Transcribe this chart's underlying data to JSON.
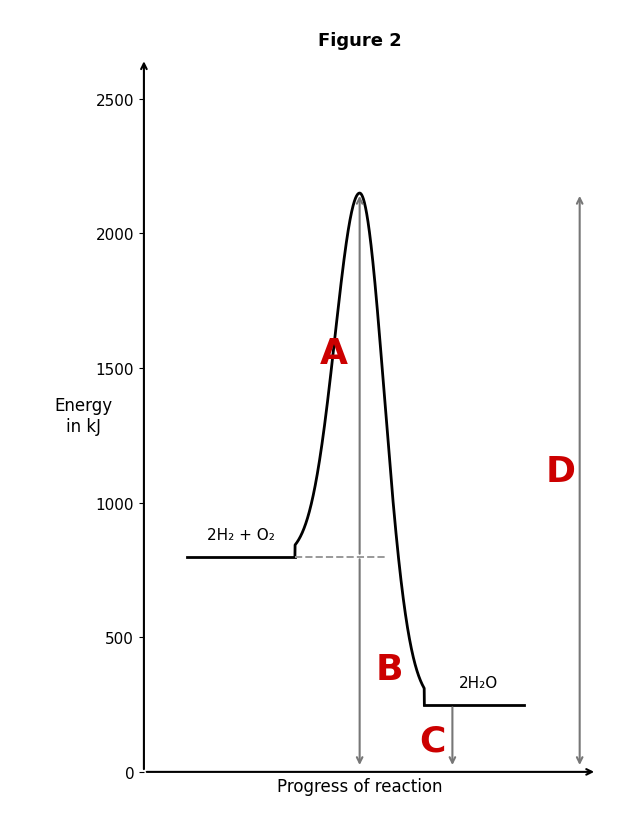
{
  "title": "Figure 2",
  "xlabel": "Progress of reaction",
  "ylabel": "Energy\nin kJ",
  "ylim": [
    0,
    2650
  ],
  "xlim": [
    0,
    10
  ],
  "yticks": [
    0,
    500,
    1000,
    1500,
    2000,
    2500
  ],
  "reactant_level": 800,
  "product_level": 250,
  "peak_level": 2150,
  "reactant_x_start": 1.0,
  "reactant_x_end": 3.5,
  "peak_x": 5.0,
  "product_x_start": 6.5,
  "product_x_end": 8.8,
  "curve_color": "#000000",
  "label_color": "#cc0000",
  "arrow_color": "#777777",
  "dashed_color": "#999999",
  "bg_color": "#ffffff",
  "reactant_label": "2H₂ + O₂",
  "product_label": "2H₂O",
  "label_A": "A",
  "label_B": "B",
  "label_C": "C",
  "label_D": "D",
  "title_fontsize": 13,
  "axis_label_fontsize": 12,
  "tick_fontsize": 11,
  "annotation_fontsize": 26
}
